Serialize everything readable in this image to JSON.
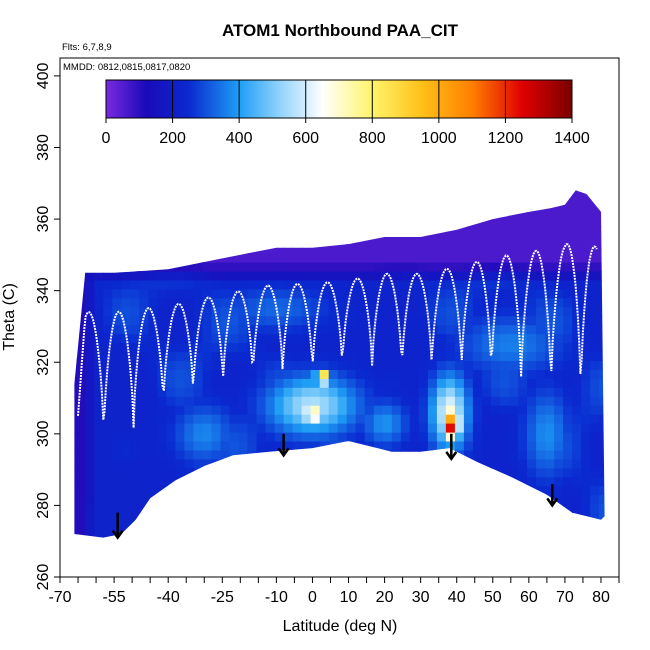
{
  "chart_data": {
    "type": "heatmap",
    "title": "ATOM1 Northbound PAA_CIT",
    "flights_note": "Flts: 6,7,8,9",
    "dates_note": "MMDD: 0812,0815,0817,0820",
    "xlabel": "Latitude (deg N)",
    "ylabel": "Theta (C)",
    "xlim": [
      -70,
      85
    ],
    "ylim": [
      260,
      405
    ],
    "x_ticks": [
      -70,
      -55,
      -40,
      -25,
      -10,
      0,
      10,
      20,
      30,
      40,
      50,
      60,
      70,
      80
    ],
    "y_ticks": [
      260,
      280,
      300,
      320,
      340,
      360,
      380,
      400
    ],
    "colorbar": {
      "range": [
        0,
        1400
      ],
      "ticks": [
        0,
        200,
        400,
        600,
        800,
        1000,
        1200,
        1400
      ],
      "stops": [
        {
          "value": 0,
          "color": "#7a2ae0"
        },
        {
          "value": 120,
          "color": "#1a0ab8"
        },
        {
          "value": 250,
          "color": "#0a2ad0"
        },
        {
          "value": 400,
          "color": "#1e9ef5"
        },
        {
          "value": 520,
          "color": "#8fd2fb"
        },
        {
          "value": 650,
          "color": "#ffffff"
        },
        {
          "value": 800,
          "color": "#fff46a"
        },
        {
          "value": 950,
          "color": "#ffc019"
        },
        {
          "value": 1100,
          "color": "#ff7f00"
        },
        {
          "value": 1250,
          "color": "#e00000"
        },
        {
          "value": 1400,
          "color": "#7a0000"
        }
      ]
    },
    "domain_top": [
      [
        -66,
        314
      ],
      [
        -63,
        345
      ],
      [
        -55,
        345
      ],
      [
        -40,
        346
      ],
      [
        -25,
        349
      ],
      [
        -10,
        352
      ],
      [
        0,
        352
      ],
      [
        10,
        353
      ],
      [
        20,
        355
      ],
      [
        30,
        355
      ],
      [
        40,
        357
      ],
      [
        50,
        360
      ],
      [
        60,
        362
      ],
      [
        66,
        363
      ],
      [
        70,
        364
      ],
      [
        73,
        368
      ],
      [
        76,
        367
      ],
      [
        80,
        362
      ],
      [
        81,
        277
      ]
    ],
    "domain_bottom": [
      [
        -66,
        272
      ],
      [
        -58,
        271
      ],
      [
        -53,
        272
      ],
      [
        -49,
        276
      ],
      [
        -45,
        282
      ],
      [
        -38,
        287
      ],
      [
        -30,
        291
      ],
      [
        -22,
        294
      ],
      [
        -12,
        295
      ],
      [
        0,
        296
      ],
      [
        10,
        298
      ],
      [
        22,
        295
      ],
      [
        30,
        295
      ],
      [
        38,
        296
      ],
      [
        46,
        292
      ],
      [
        55,
        288
      ],
      [
        65,
        283
      ],
      [
        72,
        278
      ],
      [
        80,
        276
      ]
    ],
    "background_value": 220,
    "highlights": [
      {
        "x": 0,
        "y": 308,
        "rx": 12,
        "ry": 8,
        "value": 560
      },
      {
        "x": 0,
        "y": 306,
        "rx": 3,
        "ry": 4,
        "value": 760
      },
      {
        "x": 3,
        "y": 316,
        "rx": 2,
        "ry": 2,
        "value": 950
      },
      {
        "x": 38,
        "y": 306,
        "rx": 5,
        "ry": 10,
        "value": 640
      },
      {
        "x": 38.5,
        "y": 303,
        "rx": 2.5,
        "ry": 5,
        "value": 1060
      },
      {
        "x": 38.5,
        "y": 302,
        "rx": 1.2,
        "ry": 2,
        "value": 1300
      },
      {
        "x": -30,
        "y": 300,
        "rx": 8,
        "ry": 8,
        "value": 370
      },
      {
        "x": 20,
        "y": 303,
        "rx": 6,
        "ry": 6,
        "value": 390
      },
      {
        "x": 55,
        "y": 325,
        "rx": 14,
        "ry": 8,
        "value": 360
      },
      {
        "x": -10,
        "y": 335,
        "rx": 14,
        "ry": 6,
        "value": 330
      },
      {
        "x": 65,
        "y": 300,
        "rx": 6,
        "ry": 12,
        "value": 380
      }
    ],
    "low_zones": [
      {
        "y_above": 342,
        "value": 60
      },
      {
        "x_below": -60,
        "value": 110
      }
    ],
    "arrows": [
      {
        "x": -54,
        "y_start": 278,
        "y_end": 271
      },
      {
        "x": -8,
        "y_start": 300,
        "y_end": 294
      },
      {
        "x": 38.5,
        "y_start": 300,
        "y_end": 293
      },
      {
        "x": 66.5,
        "y_start": 286,
        "y_end": 280
      }
    ]
  }
}
